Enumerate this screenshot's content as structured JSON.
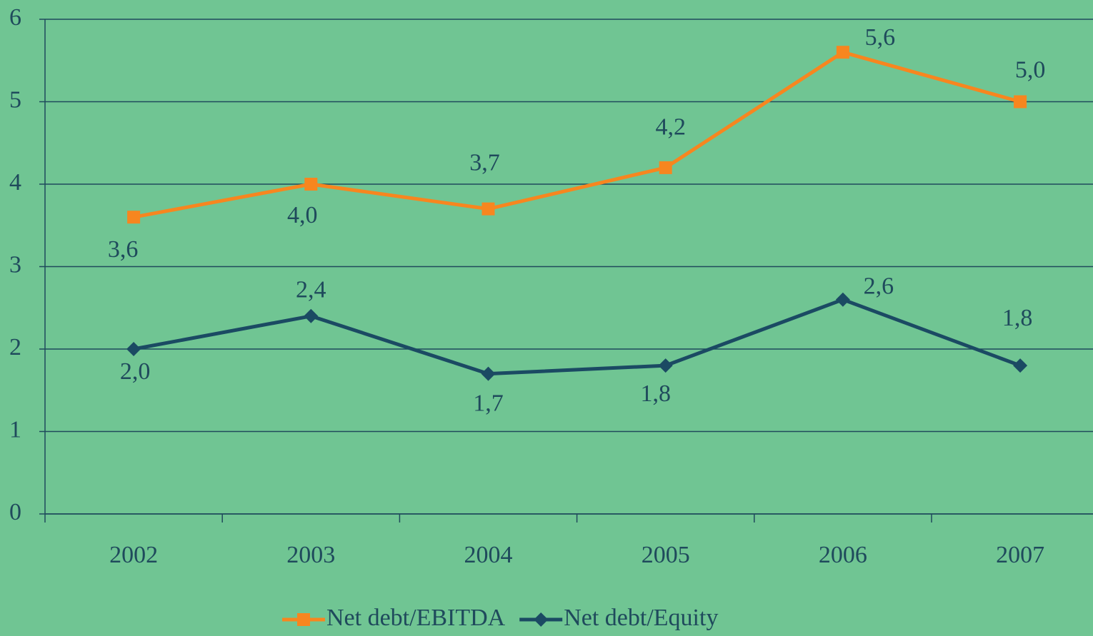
{
  "chart_data": {
    "type": "line",
    "categories": [
      "2002",
      "2003",
      "2004",
      "2005",
      "2006",
      "2007"
    ],
    "series": [
      {
        "name": "Net debt/EBITDA",
        "color": "#f7861f",
        "marker": "square",
        "values": [
          3.6,
          4.0,
          3.7,
          4.2,
          5.6,
          5.0
        ],
        "value_labels": [
          "3,6",
          "4,0",
          "3,7",
          "4,2",
          "5,6",
          "5,0"
        ]
      },
      {
        "name": "Net debt/Equity",
        "color": "#1b4a63",
        "marker": "diamond",
        "values": [
          2.0,
          2.4,
          1.7,
          1.8,
          2.6,
          1.8
        ],
        "value_labels": [
          "2,0",
          "2,4",
          "1,7",
          "1,8",
          "2,6",
          "1,8"
        ]
      }
    ],
    "ylim": [
      0,
      6
    ],
    "yticks": [
      0,
      1,
      2,
      3,
      4,
      5,
      6
    ],
    "grid": true,
    "legend": "bottom"
  }
}
